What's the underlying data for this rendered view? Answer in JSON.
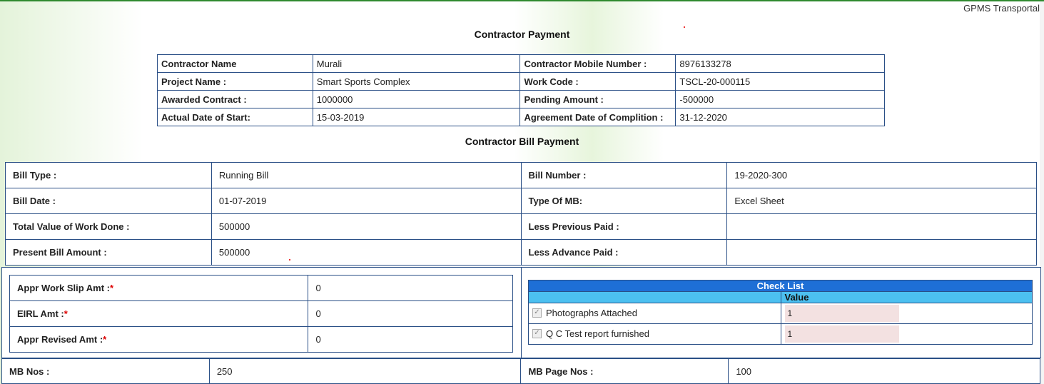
{
  "header": {
    "brand": "GPMS Transportal"
  },
  "contractor_payment": {
    "title": "Contractor Payment",
    "rows": [
      {
        "label1": "Contractor Name",
        "value1": "Murali",
        "label2": "Contractor Mobile Number :",
        "value2": "8976133278"
      },
      {
        "label1": "Project Name :",
        "value1": "Smart Sports Complex",
        "label2": "Work Code :",
        "value2": "TSCL-20-000115"
      },
      {
        "label1": "Awarded Contract :",
        "value1": "1000000",
        "label2": "Pending Amount :",
        "value2": "-500000"
      },
      {
        "label1": "Actual Date of Start:",
        "value1": "15-03-2019",
        "label2": "Agreement Date of Complition :",
        "value2": "31-12-2020"
      }
    ]
  },
  "bill_payment": {
    "title": "Contractor Bill Payment",
    "rows": [
      {
        "label1": "Bill Type :",
        "value1": "Running Bill",
        "label2": "Bill Number :",
        "value2": "19-2020-300"
      },
      {
        "label1": "Bill Date :",
        "value1": "01-07-2019",
        "label2": "Type Of MB:",
        "value2": "Excel Sheet"
      },
      {
        "label1": "Total Value of Work Done :",
        "value1": "500000",
        "label2": "Less Previous Paid :",
        "value2": ""
      },
      {
        "label1": "Present Bill Amount :",
        "value1": "500000",
        "label2": "Less Advance Paid :",
        "value2": ""
      }
    ]
  },
  "approvals": [
    {
      "label": "Appr Work Slip Amt :",
      "required": "*",
      "value": "0"
    },
    {
      "label": "EIRL Amt :",
      "required": "*",
      "value": "0"
    },
    {
      "label": "Appr Revised Amt :",
      "required": "*",
      "value": "0"
    }
  ],
  "checklist": {
    "title": "Check List",
    "value_header": "Value",
    "items": [
      {
        "label": "Photographs Attached",
        "checked": true,
        "value": "1"
      },
      {
        "label": "Q C Test report furnished",
        "checked": true,
        "value": "1"
      }
    ]
  },
  "mb": {
    "nos_label": "MB Nos :",
    "nos_value": "250",
    "page_label": "MB Page Nos :",
    "page_value": "100"
  }
}
